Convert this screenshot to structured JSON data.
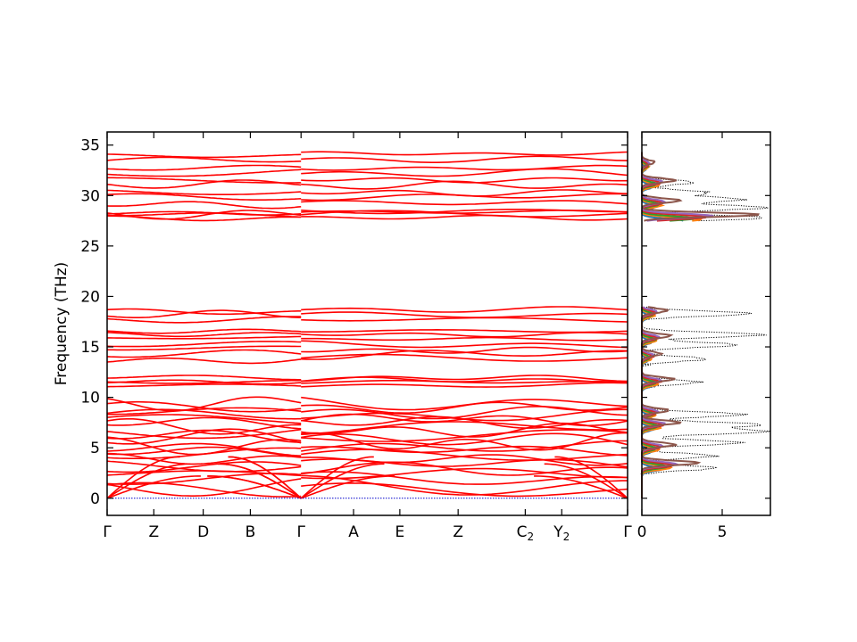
{
  "chart_data": [
    {
      "type": "line",
      "name": "band-structure",
      "ylabel": "Frequency (THz)",
      "xlabel": "",
      "ylim": [
        -1.7,
        36.3
      ],
      "yticks": [
        0,
        5,
        10,
        15,
        20,
        25,
        30,
        35
      ],
      "high_symmetry_points": [
        {
          "label": "Γ",
          "sub": "",
          "x": 0.0
        },
        {
          "label": "Z",
          "sub": "",
          "x": 0.0897
        },
        {
          "label": "D",
          "sub": "",
          "x": 0.1846
        },
        {
          "label": "B",
          "sub": "",
          "x": 0.2752
        },
        {
          "label": "Γ",
          "sub": "",
          "x": 0.3726
        },
        {
          "label": "A",
          "sub": "",
          "x": 0.4735
        },
        {
          "label": "E",
          "sub": "",
          "x": 0.5624
        },
        {
          "label": "Z",
          "sub": "",
          "x": 0.6744
        },
        {
          "label": "C",
          "sub": "2",
          "x": 0.8034
        },
        {
          "label": "Y",
          "sub": "2",
          "x": 0.8735
        },
        {
          "label": "Γ",
          "sub": "",
          "x": 1.0
        }
      ],
      "segment_breaks": [
        0.3726
      ],
      "band_color": "#ff0000",
      "zero_line_color": "#0000cc",
      "gap": [
        19.0,
        27.5
      ],
      "band_groups": [
        {
          "range": [
            0.0,
            9.7
          ],
          "bands": [
            0.7,
            1.2,
            1.8,
            2.4,
            2.9,
            3.3,
            3.8,
            4.2,
            4.6,
            5.0,
            5.4,
            5.8,
            6.2,
            6.6,
            7.0,
            7.4,
            7.8,
            8.2,
            8.6,
            9.0,
            9.4
          ]
        },
        {
          "range": [
            11.0,
            12.0
          ],
          "bands": [
            11.3,
            11.5,
            11.7,
            11.9
          ]
        },
        {
          "range": [
            13.5,
            16.8
          ],
          "bands": [
            13.7,
            14.2,
            14.7,
            15.3,
            15.8,
            16.2,
            16.6
          ]
        },
        {
          "range": [
            17.6,
            18.9
          ],
          "bands": [
            17.8,
            18.2,
            18.6
          ]
        },
        {
          "range": [
            27.6,
            28.5
          ],
          "bands": [
            27.8,
            28.0,
            28.2,
            28.4
          ]
        },
        {
          "range": [
            29.0,
            34.2
          ],
          "bands": [
            29.2,
            29.8,
            30.4,
            31.0,
            31.6,
            32.2,
            32.8,
            33.6,
            34.1
          ]
        }
      ]
    },
    {
      "type": "line",
      "name": "phonon-dos",
      "xlabel": "",
      "ylabel": "",
      "xlim": [
        0,
        8
      ],
      "xticks": [
        0,
        5
      ],
      "ylim": [
        -1.7,
        36.3
      ],
      "total_dos_style": "dotted",
      "total_dos_color": "#000000",
      "partial_dos_colors": [
        "#1f77b4",
        "#ff7f0e",
        "#2ca02c",
        "#d62728",
        "#9467bd",
        "#8c564b"
      ],
      "total_dos_peaks": [
        {
          "freq": 3.0,
          "height": 4.6
        },
        {
          "freq": 4.2,
          "height": 4.5
        },
        {
          "freq": 5.5,
          "height": 6.2
        },
        {
          "freq": 6.6,
          "height": 7.8
        },
        {
          "freq": 7.3,
          "height": 7.4
        },
        {
          "freq": 8.3,
          "height": 6.4
        },
        {
          "freq": 11.5,
          "height": 3.5
        },
        {
          "freq": 13.8,
          "height": 4.0
        },
        {
          "freq": 15.2,
          "height": 6.0
        },
        {
          "freq": 16.2,
          "height": 7.6
        },
        {
          "freq": 18.3,
          "height": 6.8
        },
        {
          "freq": 27.8,
          "height": 7.7
        },
        {
          "freq": 28.8,
          "height": 7.8
        },
        {
          "freq": 29.6,
          "height": 6.2
        },
        {
          "freq": 30.3,
          "height": 4.0
        },
        {
          "freq": 31.3,
          "height": 3.2
        }
      ],
      "partial_dos_peaks": [
        {
          "freq": 3.2,
          "height": 3.6
        },
        {
          "freq": 5.0,
          "height": 2.1
        },
        {
          "freq": 7.2,
          "height": 2.4
        },
        {
          "freq": 8.4,
          "height": 1.7
        },
        {
          "freq": 11.5,
          "height": 2.0
        },
        {
          "freq": 14.0,
          "height": 1.2
        },
        {
          "freq": 15.8,
          "height": 1.8
        },
        {
          "freq": 18.3,
          "height": 1.6
        },
        {
          "freq": 27.8,
          "height": 7.4
        },
        {
          "freq": 29.2,
          "height": 2.4
        },
        {
          "freq": 31.2,
          "height": 2.1
        },
        {
          "freq": 33.0,
          "height": 0.8
        }
      ]
    }
  ]
}
